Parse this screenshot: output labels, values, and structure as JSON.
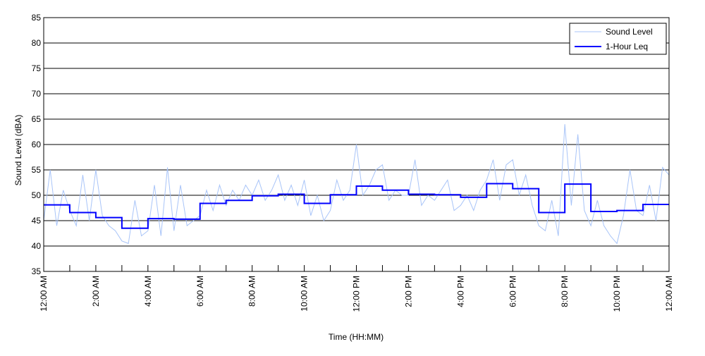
{
  "chart_data": {
    "type": "line",
    "title": "",
    "xlabel": "Time (HH:MM)",
    "ylabel": "Sound Level (dBA)",
    "ylim": [
      35,
      85
    ],
    "yticks": [
      35,
      40,
      45,
      50,
      55,
      60,
      65,
      70,
      75,
      80,
      85
    ],
    "xlim_hours": [
      0,
      24
    ],
    "xticks_hours": [
      0,
      2,
      4,
      6,
      8,
      10,
      12,
      14,
      16,
      18,
      20,
      22,
      24
    ],
    "xtick_labels": [
      "12:00 AM",
      "2:00 AM",
      "4:00 AM",
      "6:00 AM",
      "8:00 AM",
      "10:00 AM",
      "12:00 PM",
      "2:00 PM",
      "4:00 PM",
      "6:00 PM",
      "8:00 PM",
      "10:00 PM",
      "12:00 AM"
    ],
    "grid": true,
    "legend_position": "top-right",
    "series": [
      {
        "name": "Sound Level",
        "color": "#a8c4f8",
        "sample_interval_minutes": 15,
        "values": [
          45,
          55,
          44,
          51,
          47,
          44,
          54,
          45,
          55,
          46,
          44,
          43,
          41,
          40.5,
          49,
          42,
          43,
          52,
          42,
          55.5,
          43,
          52,
          44,
          45,
          46,
          51,
          47,
          52,
          48,
          51,
          49,
          52,
          50,
          53,
          49,
          51,
          54,
          49,
          52,
          48,
          53,
          46,
          50,
          45,
          47,
          53,
          49,
          51,
          60,
          50,
          52,
          55,
          56,
          49,
          51,
          50,
          50,
          57,
          48,
          50,
          49,
          51,
          53,
          47,
          48,
          50,
          47,
          51,
          53,
          57,
          49,
          56,
          57,
          50,
          54,
          48,
          44,
          43,
          49,
          42,
          64,
          48,
          62,
          47,
          44,
          49,
          44,
          42,
          40.5,
          46,
          55,
          47,
          46,
          52,
          45,
          55.5,
          54
        ]
      },
      {
        "name": "1-Hour Leq",
        "color": "#0000ff",
        "step": "hourly",
        "values": [
          48.1,
          46.6,
          45.6,
          43.5,
          45.4,
          45.3,
          48.4,
          49.0,
          49.9,
          50.2,
          48.4,
          50.1,
          51.8,
          51.0,
          50.2,
          50.1,
          49.6,
          52.3,
          51.3,
          46.6,
          52.2,
          46.8,
          47.0,
          48.2
        ]
      }
    ]
  }
}
